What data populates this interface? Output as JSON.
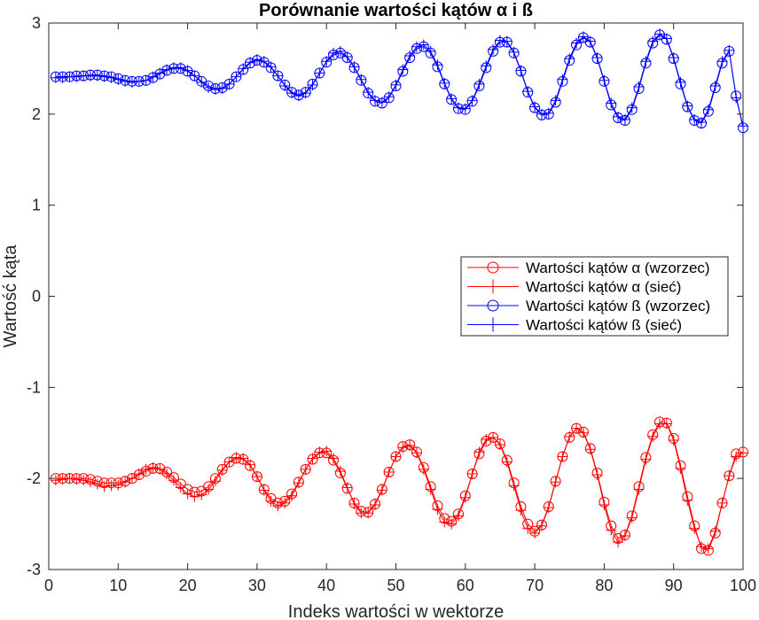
{
  "chart_data": {
    "type": "line",
    "title": "Porównanie wartości kątów α i ß",
    "xlabel": "Indeks wartości w wektorze",
    "ylabel": "Wartość kąta",
    "xlim": [
      0,
      100
    ],
    "ylim": [
      -3,
      3
    ],
    "x_ticks": [
      "0",
      "10",
      "20",
      "30",
      "40",
      "50",
      "60",
      "70",
      "80",
      "90",
      "100"
    ],
    "y_ticks": [
      "-3",
      "-2",
      "-1",
      "0",
      "1",
      "2",
      "3"
    ],
    "grid": false,
    "legend_position": "right",
    "x": [
      1,
      2,
      3,
      4,
      5,
      6,
      7,
      8,
      9,
      10,
      11,
      12,
      13,
      14,
      15,
      16,
      17,
      18,
      19,
      20,
      21,
      22,
      23,
      24,
      25,
      26,
      27,
      28,
      29,
      30,
      31,
      32,
      33,
      34,
      35,
      36,
      37,
      38,
      39,
      40,
      41,
      42,
      43,
      44,
      45,
      46,
      47,
      48,
      49,
      50,
      51,
      52,
      53,
      54,
      55,
      56,
      57,
      58,
      59,
      60,
      61,
      62,
      63,
      64,
      65,
      66,
      67,
      68,
      69,
      70,
      71,
      72,
      73,
      74,
      75,
      76,
      77,
      78,
      79,
      80,
      81,
      82,
      83,
      84,
      85,
      86,
      87,
      88,
      89,
      90,
      91,
      92,
      93,
      94,
      95,
      96,
      97,
      98,
      99,
      100
    ],
    "series": [
      {
        "name": "Wartości kątów α (wzorzec)",
        "color": "#ff0000",
        "marker": "circle",
        "values": [
          -2.0,
          -2.0,
          -2.0,
          -2.0,
          -2.0,
          -2.01,
          -2.03,
          -2.05,
          -2.05,
          -2.05,
          -2.03,
          -2.0,
          -1.96,
          -1.92,
          -1.89,
          -1.89,
          -1.93,
          -1.99,
          -2.06,
          -2.12,
          -2.15,
          -2.14,
          -2.09,
          -2.0,
          -1.9,
          -1.82,
          -1.78,
          -1.79,
          -1.86,
          -1.98,
          -2.12,
          -2.22,
          -2.27,
          -2.25,
          -2.17,
          -2.04,
          -1.9,
          -1.79,
          -1.72,
          -1.72,
          -1.8,
          -1.94,
          -2.11,
          -2.27,
          -2.36,
          -2.37,
          -2.28,
          -2.12,
          -1.93,
          -1.76,
          -1.65,
          -1.63,
          -1.71,
          -1.88,
          -2.09,
          -2.3,
          -2.44,
          -2.47,
          -2.39,
          -2.19,
          -1.95,
          -1.73,
          -1.59,
          -1.55,
          -1.62,
          -1.8,
          -2.05,
          -2.31,
          -2.5,
          -2.58,
          -2.51,
          -2.31,
          -2.03,
          -1.76,
          -1.55,
          -1.45,
          -1.49,
          -1.67,
          -1.94,
          -2.26,
          -2.52,
          -2.66,
          -2.62,
          -2.41,
          -2.09,
          -1.77,
          -1.52,
          -1.38,
          -1.39,
          -1.56,
          -1.86,
          -2.2,
          -2.52,
          -2.77,
          -2.79,
          -2.6,
          -2.27,
          -1.97,
          -1.73,
          -1.71
        ]
      },
      {
        "name": "Wartości kątów α (sieć)",
        "color": "#ff0000",
        "marker": "plus",
        "values": [
          -2.02,
          -2.01,
          -2.0,
          -2.01,
          -2.02,
          -2.04,
          -2.06,
          -2.09,
          -2.08,
          -2.07,
          -2.04,
          -2.0,
          -1.95,
          -1.9,
          -1.88,
          -1.9,
          -1.95,
          -2.02,
          -2.1,
          -2.17,
          -2.2,
          -2.18,
          -2.12,
          -2.03,
          -1.91,
          -1.82,
          -1.77,
          -1.78,
          -1.85,
          -1.98,
          -2.13,
          -2.25,
          -2.3,
          -2.27,
          -2.19,
          -2.05,
          -1.9,
          -1.78,
          -1.71,
          -1.7,
          -1.78,
          -1.92,
          -2.1,
          -2.28,
          -2.38,
          -2.38,
          -2.29,
          -2.13,
          -1.93,
          -1.76,
          -1.66,
          -1.64,
          -1.72,
          -1.9,
          -2.12,
          -2.34,
          -2.48,
          -2.5,
          -2.41,
          -2.21,
          -1.95,
          -1.71,
          -1.57,
          -1.55,
          -1.63,
          -1.82,
          -2.08,
          -2.35,
          -2.55,
          -2.6,
          -2.52,
          -2.32,
          -2.04,
          -1.76,
          -1.54,
          -1.45,
          -1.5,
          -1.68,
          -1.96,
          -2.29,
          -2.57,
          -2.7,
          -2.63,
          -2.43,
          -2.12,
          -1.79,
          -1.54,
          -1.4,
          -1.4,
          -1.58,
          -1.89,
          -2.24,
          -2.55,
          -2.75,
          -2.77,
          -2.58,
          -2.27,
          -1.97,
          -1.76,
          -1.72
        ]
      },
      {
        "name": "Wartości kątów ß (wzorzec)",
        "color": "#0000ff",
        "marker": "circle",
        "values": [
          2.41,
          2.41,
          2.41,
          2.42,
          2.42,
          2.43,
          2.43,
          2.42,
          2.41,
          2.39,
          2.37,
          2.36,
          2.36,
          2.37,
          2.4,
          2.44,
          2.48,
          2.5,
          2.5,
          2.47,
          2.42,
          2.36,
          2.31,
          2.28,
          2.29,
          2.33,
          2.41,
          2.49,
          2.56,
          2.59,
          2.57,
          2.51,
          2.42,
          2.32,
          2.24,
          2.21,
          2.24,
          2.33,
          2.45,
          2.57,
          2.65,
          2.67,
          2.62,
          2.51,
          2.37,
          2.23,
          2.14,
          2.12,
          2.18,
          2.31,
          2.47,
          2.62,
          2.72,
          2.74,
          2.67,
          2.52,
          2.33,
          2.16,
          2.06,
          2.05,
          2.14,
          2.31,
          2.51,
          2.69,
          2.79,
          2.79,
          2.67,
          2.47,
          2.24,
          2.07,
          1.99,
          2.0,
          2.13,
          2.36,
          2.59,
          2.76,
          2.84,
          2.79,
          2.61,
          2.36,
          2.1,
          1.96,
          1.93,
          2.05,
          2.28,
          2.56,
          2.78,
          2.87,
          2.82,
          2.61,
          2.33,
          2.08,
          1.93,
          1.9,
          2.03,
          2.29,
          2.56,
          2.69,
          2.2,
          1.85
        ]
      },
      {
        "name": "Wartości kątów ß (sieć)",
        "color": "#0000ff",
        "marker": "plus",
        "values": [
          2.4,
          2.4,
          2.41,
          2.41,
          2.42,
          2.42,
          2.42,
          2.41,
          2.4,
          2.38,
          2.36,
          2.35,
          2.36,
          2.37,
          2.41,
          2.45,
          2.49,
          2.51,
          2.51,
          2.48,
          2.42,
          2.35,
          2.29,
          2.27,
          2.28,
          2.33,
          2.41,
          2.5,
          2.57,
          2.6,
          2.58,
          2.52,
          2.42,
          2.31,
          2.23,
          2.2,
          2.23,
          2.32,
          2.45,
          2.58,
          2.67,
          2.69,
          2.63,
          2.52,
          2.38,
          2.24,
          2.15,
          2.13,
          2.19,
          2.32,
          2.49,
          2.64,
          2.74,
          2.76,
          2.69,
          2.54,
          2.34,
          2.17,
          2.07,
          2.06,
          2.15,
          2.33,
          2.53,
          2.71,
          2.81,
          2.8,
          2.68,
          2.48,
          2.25,
          2.08,
          2.0,
          2.01,
          2.15,
          2.38,
          2.61,
          2.78,
          2.85,
          2.8,
          2.62,
          2.37,
          2.12,
          1.97,
          1.94,
          2.07,
          2.3,
          2.58,
          2.8,
          2.88,
          2.83,
          2.62,
          2.35,
          2.09,
          1.94,
          1.91,
          2.05,
          2.31,
          2.58,
          2.7,
          2.18,
          1.87
        ]
      }
    ]
  }
}
